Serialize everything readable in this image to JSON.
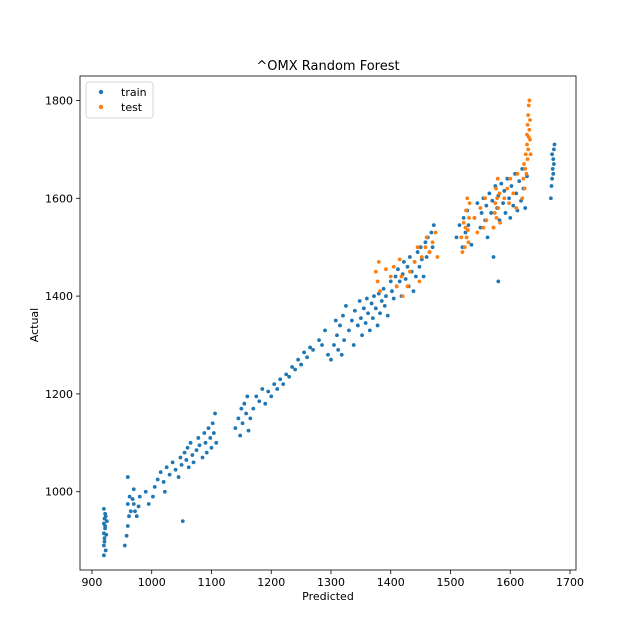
{
  "chart_data": {
    "type": "scatter",
    "title": "^OMX Random Forest",
    "xlabel": "Predicted",
    "ylabel": "Actual",
    "xlim": [
      880,
      1710
    ],
    "ylim": [
      840,
      1850
    ],
    "xticks": [
      900,
      1000,
      1100,
      1200,
      1300,
      1400,
      1500,
      1600,
      1700
    ],
    "yticks": [
      1000,
      1200,
      1400,
      1600,
      1800
    ],
    "legend_position": "top-left",
    "series": [
      {
        "name": "train",
        "color": "#1f77b4",
        "points": [
          [
            920,
            870
          ],
          [
            920,
            890
          ],
          [
            921,
            905
          ],
          [
            920,
            915
          ],
          [
            922,
            925
          ],
          [
            920,
            935
          ],
          [
            921,
            945
          ],
          [
            922,
            955
          ],
          [
            920,
            965
          ],
          [
            923,
            880
          ],
          [
            921,
            898
          ],
          [
            924,
            912
          ],
          [
            922,
            930
          ],
          [
            923,
            950
          ],
          [
            925,
            940
          ],
          [
            955,
            890
          ],
          [
            958,
            910
          ],
          [
            960,
            930
          ],
          [
            962,
            950
          ],
          [
            965,
            960
          ],
          [
            960,
            975
          ],
          [
            963,
            990
          ],
          [
            968,
            985
          ],
          [
            970,
            975
          ],
          [
            972,
            960
          ],
          [
            975,
            950
          ],
          [
            978,
            970
          ],
          [
            980,
            990
          ],
          [
            970,
            1005
          ],
          [
            960,
            1030
          ],
          [
            990,
            1000
          ],
          [
            995,
            975
          ],
          [
            1002,
            990
          ],
          [
            1005,
            1010
          ],
          [
            1010,
            1025
          ],
          [
            1015,
            1040
          ],
          [
            1020,
            1020
          ],
          [
            1022,
            1000
          ],
          [
            1025,
            1050
          ],
          [
            1030,
            1035
          ],
          [
            1035,
            1060
          ],
          [
            1040,
            1045
          ],
          [
            1045,
            1030
          ],
          [
            1048,
            1070
          ],
          [
            1050,
            1055
          ],
          [
            1052,
            940
          ],
          [
            1055,
            1080
          ],
          [
            1058,
            1065
          ],
          [
            1060,
            1090
          ],
          [
            1062,
            1050
          ],
          [
            1065,
            1100
          ],
          [
            1068,
            1075
          ],
          [
            1070,
            1060
          ],
          [
            1075,
            1085
          ],
          [
            1078,
            1110
          ],
          [
            1080,
            1095
          ],
          [
            1085,
            1070
          ],
          [
            1088,
            1120
          ],
          [
            1090,
            1100
          ],
          [
            1092,
            1080
          ],
          [
            1095,
            1130
          ],
          [
            1098,
            1110
          ],
          [
            1100,
            1090
          ],
          [
            1102,
            1140
          ],
          [
            1104,
            1120
          ],
          [
            1106,
            1160
          ],
          [
            1108,
            1100
          ],
          [
            1140,
            1130
          ],
          [
            1145,
            1150
          ],
          [
            1148,
            1115
          ],
          [
            1150,
            1170
          ],
          [
            1152,
            1140
          ],
          [
            1155,
            1180
          ],
          [
            1158,
            1160
          ],
          [
            1160,
            1195
          ],
          [
            1162,
            1125
          ],
          [
            1165,
            1150
          ],
          [
            1170,
            1170
          ],
          [
            1175,
            1195
          ],
          [
            1180,
            1185
          ],
          [
            1185,
            1210
          ],
          [
            1190,
            1180
          ],
          [
            1195,
            1205
          ],
          [
            1200,
            1195
          ],
          [
            1205,
            1220
          ],
          [
            1210,
            1210
          ],
          [
            1215,
            1230
          ],
          [
            1220,
            1220
          ],
          [
            1225,
            1240
          ],
          [
            1230,
            1235
          ],
          [
            1235,
            1255
          ],
          [
            1240,
            1250
          ],
          [
            1245,
            1270
          ],
          [
            1250,
            1260
          ],
          [
            1255,
            1285
          ],
          [
            1260,
            1275
          ],
          [
            1265,
            1295
          ],
          [
            1270,
            1290
          ],
          [
            1280,
            1310
          ],
          [
            1285,
            1300
          ],
          [
            1290,
            1330
          ],
          [
            1295,
            1280
          ],
          [
            1300,
            1270
          ],
          [
            1305,
            1300
          ],
          [
            1308,
            1350
          ],
          [
            1310,
            1320
          ],
          [
            1312,
            1290
          ],
          [
            1315,
            1340
          ],
          [
            1318,
            1280
          ],
          [
            1320,
            1360
          ],
          [
            1322,
            1310
          ],
          [
            1325,
            1380
          ],
          [
            1330,
            1330
          ],
          [
            1335,
            1350
          ],
          [
            1338,
            1300
          ],
          [
            1340,
            1370
          ],
          [
            1345,
            1340
          ],
          [
            1348,
            1390
          ],
          [
            1350,
            1355
          ],
          [
            1352,
            1320
          ],
          [
            1355,
            1375
          ],
          [
            1358,
            1345
          ],
          [
            1360,
            1395
          ],
          [
            1362,
            1365
          ],
          [
            1365,
            1330
          ],
          [
            1368,
            1385
          ],
          [
            1370,
            1355
          ],
          [
            1372,
            1400
          ],
          [
            1375,
            1375
          ],
          [
            1378,
            1340
          ],
          [
            1380,
            1405
          ],
          [
            1382,
            1365
          ],
          [
            1385,
            1390
          ],
          [
            1388,
            1415
          ],
          [
            1390,
            1380
          ],
          [
            1392,
            1400
          ],
          [
            1395,
            1360
          ],
          [
            1400,
            1430
          ],
          [
            1402,
            1410
          ],
          [
            1405,
            1395
          ],
          [
            1408,
            1440
          ],
          [
            1410,
            1420
          ],
          [
            1412,
            1455
          ],
          [
            1415,
            1430
          ],
          [
            1418,
            1400
          ],
          [
            1420,
            1445
          ],
          [
            1422,
            1470
          ],
          [
            1425,
            1435
          ],
          [
            1428,
            1460
          ],
          [
            1430,
            1420
          ],
          [
            1432,
            1480
          ],
          [
            1435,
            1450
          ],
          [
            1438,
            1410
          ],
          [
            1440,
            1470
          ],
          [
            1442,
            1440
          ],
          [
            1445,
            1490
          ],
          [
            1448,
            1460
          ],
          [
            1450,
            1500
          ],
          [
            1452,
            1475
          ],
          [
            1455,
            1440
          ],
          [
            1458,
            1510
          ],
          [
            1460,
            1480
          ],
          [
            1462,
            1520
          ],
          [
            1465,
            1490
          ],
          [
            1468,
            1530
          ],
          [
            1470,
            1500
          ],
          [
            1472,
            1545
          ],
          [
            1510,
            1520
          ],
          [
            1515,
            1545
          ],
          [
            1520,
            1500
          ],
          [
            1522,
            1560
          ],
          [
            1525,
            1530
          ],
          [
            1528,
            1575
          ],
          [
            1530,
            1545
          ],
          [
            1535,
            1505
          ],
          [
            1540,
            1560
          ],
          [
            1545,
            1590
          ],
          [
            1550,
            1540
          ],
          [
            1552,
            1570
          ],
          [
            1555,
            1600
          ],
          [
            1558,
            1555
          ],
          [
            1560,
            1585
          ],
          [
            1562,
            1520
          ],
          [
            1565,
            1610
          ],
          [
            1568,
            1570
          ],
          [
            1570,
            1595
          ],
          [
            1572,
            1540
          ],
          [
            1575,
            1625
          ],
          [
            1578,
            1580
          ],
          [
            1580,
            1605
          ],
          [
            1582,
            1555
          ],
          [
            1585,
            1630
          ],
          [
            1588,
            1590
          ],
          [
            1590,
            1615
          ],
          [
            1592,
            1570
          ],
          [
            1595,
            1640
          ],
          [
            1598,
            1600
          ],
          [
            1600,
            1560
          ],
          [
            1602,
            1625
          ],
          [
            1605,
            1585
          ],
          [
            1608,
            1650
          ],
          [
            1610,
            1610
          ],
          [
            1612,
            1575
          ],
          [
            1615,
            1635
          ],
          [
            1618,
            1595
          ],
          [
            1620,
            1660
          ],
          [
            1622,
            1620
          ],
          [
            1625,
            1580
          ],
          [
            1628,
            1645
          ],
          [
            1580,
            1430
          ],
          [
            1572,
            1480
          ],
          [
            1668,
            1600
          ],
          [
            1670,
            1640
          ],
          [
            1671,
            1660
          ],
          [
            1672,
            1680
          ],
          [
            1673,
            1700
          ],
          [
            1670,
            1690
          ],
          [
            1672,
            1650
          ],
          [
            1674,
            1710
          ],
          [
            1669,
            1625
          ],
          [
            1673,
            1670
          ]
        ]
      },
      {
        "name": "test",
        "color": "#ff7f0e",
        "points": [
          [
            1375,
            1450
          ],
          [
            1380,
            1470
          ],
          [
            1378,
            1430
          ],
          [
            1382,
            1410
          ],
          [
            1392,
            1455
          ],
          [
            1400,
            1440
          ],
          [
            1405,
            1460
          ],
          [
            1410,
            1420
          ],
          [
            1415,
            1475
          ],
          [
            1418,
            1440
          ],
          [
            1420,
            1400
          ],
          [
            1428,
            1420
          ],
          [
            1432,
            1450
          ],
          [
            1440,
            1470
          ],
          [
            1445,
            1500
          ],
          [
            1448,
            1430
          ],
          [
            1452,
            1480
          ],
          [
            1458,
            1500
          ],
          [
            1460,
            1520
          ],
          [
            1465,
            1490
          ],
          [
            1470,
            1510
          ],
          [
            1475,
            1530
          ],
          [
            1478,
            1480
          ],
          [
            1518,
            1520
          ],
          [
            1520,
            1490
          ],
          [
            1522,
            1550
          ],
          [
            1524,
            1500
          ],
          [
            1525,
            1540
          ],
          [
            1526,
            1575
          ],
          [
            1527,
            1520
          ],
          [
            1528,
            1600
          ],
          [
            1529,
            1535
          ],
          [
            1530,
            1510
          ],
          [
            1531,
            1560
          ],
          [
            1532,
            1590
          ],
          [
            1540,
            1560
          ],
          [
            1545,
            1530
          ],
          [
            1550,
            1580
          ],
          [
            1555,
            1540
          ],
          [
            1558,
            1600
          ],
          [
            1560,
            1555
          ],
          [
            1572,
            1540
          ],
          [
            1574,
            1570
          ],
          [
            1575,
            1590
          ],
          [
            1576,
            1620
          ],
          [
            1577,
            1560
          ],
          [
            1578,
            1600
          ],
          [
            1579,
            1640
          ],
          [
            1580,
            1580
          ],
          [
            1582,
            1610
          ],
          [
            1583,
            1550
          ],
          [
            1590,
            1600
          ],
          [
            1595,
            1620
          ],
          [
            1598,
            1590
          ],
          [
            1600,
            1640
          ],
          [
            1605,
            1610
          ],
          [
            1610,
            1580
          ],
          [
            1612,
            1650
          ],
          [
            1620,
            1600
          ],
          [
            1622,
            1640
          ],
          [
            1623,
            1670
          ],
          [
            1624,
            1620
          ],
          [
            1625,
            1660
          ],
          [
            1626,
            1690
          ],
          [
            1627,
            1650
          ],
          [
            1628,
            1710
          ],
          [
            1628,
            1730
          ],
          [
            1629,
            1680
          ],
          [
            1629,
            1750
          ],
          [
            1630,
            1700
          ],
          [
            1630,
            1770
          ],
          [
            1631,
            1725
          ],
          [
            1631,
            1790
          ],
          [
            1632,
            1740
          ],
          [
            1632,
            1800
          ],
          [
            1633,
            1760
          ],
          [
            1633,
            1720
          ],
          [
            1634,
            1690
          ]
        ]
      }
    ]
  }
}
